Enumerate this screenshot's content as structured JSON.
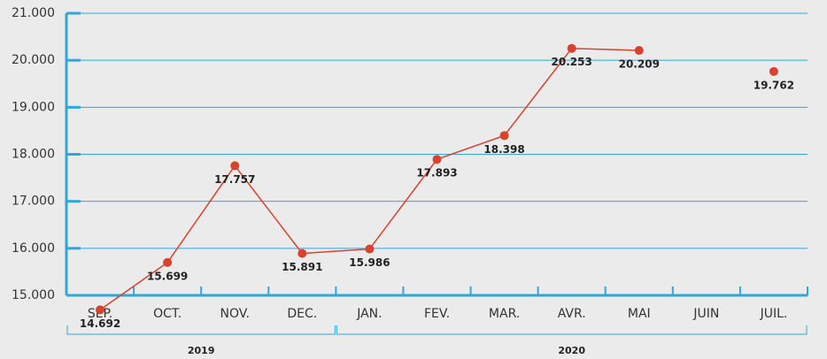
{
  "chart_data": {
    "type": "line",
    "categories": [
      "SEP.",
      "OCT.",
      "NOV.",
      "DEC.",
      "JAN.",
      "FEV.",
      "MAR.",
      "AVR.",
      "MAI",
      "JUIN",
      "JUIL."
    ],
    "groups": [
      {
        "name": "2019",
        "count": 4
      },
      {
        "name": "2020",
        "count": 7
      }
    ],
    "series": [
      {
        "color": "#d8422f",
        "values": [
          14692,
          15699,
          17757,
          15891,
          15986,
          17893,
          18398,
          20253,
          20209,
          null,
          19762
        ],
        "value_labels": [
          "14.692",
          "15.699",
          "17.757",
          "15.891",
          "15.986",
          "17.893",
          "18.398",
          "20.253",
          "20.209",
          null,
          "19.762"
        ]
      }
    ],
    "ylim": [
      15000,
      21000
    ],
    "yticks": [
      {
        "value": 15000,
        "label": "15.000"
      },
      {
        "value": 16000,
        "label": "16.000"
      },
      {
        "value": 17000,
        "label": "17.000"
      },
      {
        "value": 18000,
        "label": "18.000"
      },
      {
        "value": 19000,
        "label": "19.000"
      },
      {
        "value": 20000,
        "label": "20.000"
      },
      {
        "value": 21000,
        "label": "21.000"
      }
    ],
    "grid": true,
    "grid_color": "#2ea7dc"
  }
}
